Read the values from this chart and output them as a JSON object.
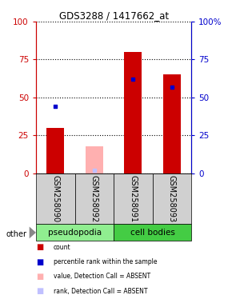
{
  "title": "GDS3288 / 1417662_at",
  "samples": [
    "GSM258090",
    "GSM258092",
    "GSM258091",
    "GSM258093"
  ],
  "count_values": [
    30,
    0,
    80,
    65
  ],
  "count_absent": [
    0,
    18,
    0,
    0
  ],
  "percentile_values": [
    44,
    0,
    62,
    57
  ],
  "percentile_absent": [
    0,
    2,
    0,
    0
  ],
  "is_absent": [
    false,
    true,
    false,
    false
  ],
  "groups": [
    {
      "label": "pseudopodia",
      "indices": [
        0,
        1
      ],
      "color": "#90ee90"
    },
    {
      "label": "cell bodies",
      "indices": [
        2,
        3
      ],
      "color": "#44cc44"
    }
  ],
  "ylim": [
    0,
    100
  ],
  "yticks": [
    0,
    25,
    50,
    75,
    100
  ],
  "left_axis_color": "#cc0000",
  "right_axis_color": "#0000cc",
  "bar_color_present": "#cc0000",
  "bar_color_absent": "#ffb0b0",
  "dot_color_present": "#0000cc",
  "dot_color_absent": "#c0c0ff",
  "sample_label_row_color": "#d0d0d0",
  "background_color": "#ffffff",
  "other_label": "other",
  "legend_items": [
    {
      "color": "#cc0000",
      "label": "count"
    },
    {
      "color": "#0000cc",
      "label": "percentile rank within the sample"
    },
    {
      "color": "#ffb0b0",
      "label": "value, Detection Call = ABSENT"
    },
    {
      "color": "#c0c0ff",
      "label": "rank, Detection Call = ABSENT"
    }
  ]
}
